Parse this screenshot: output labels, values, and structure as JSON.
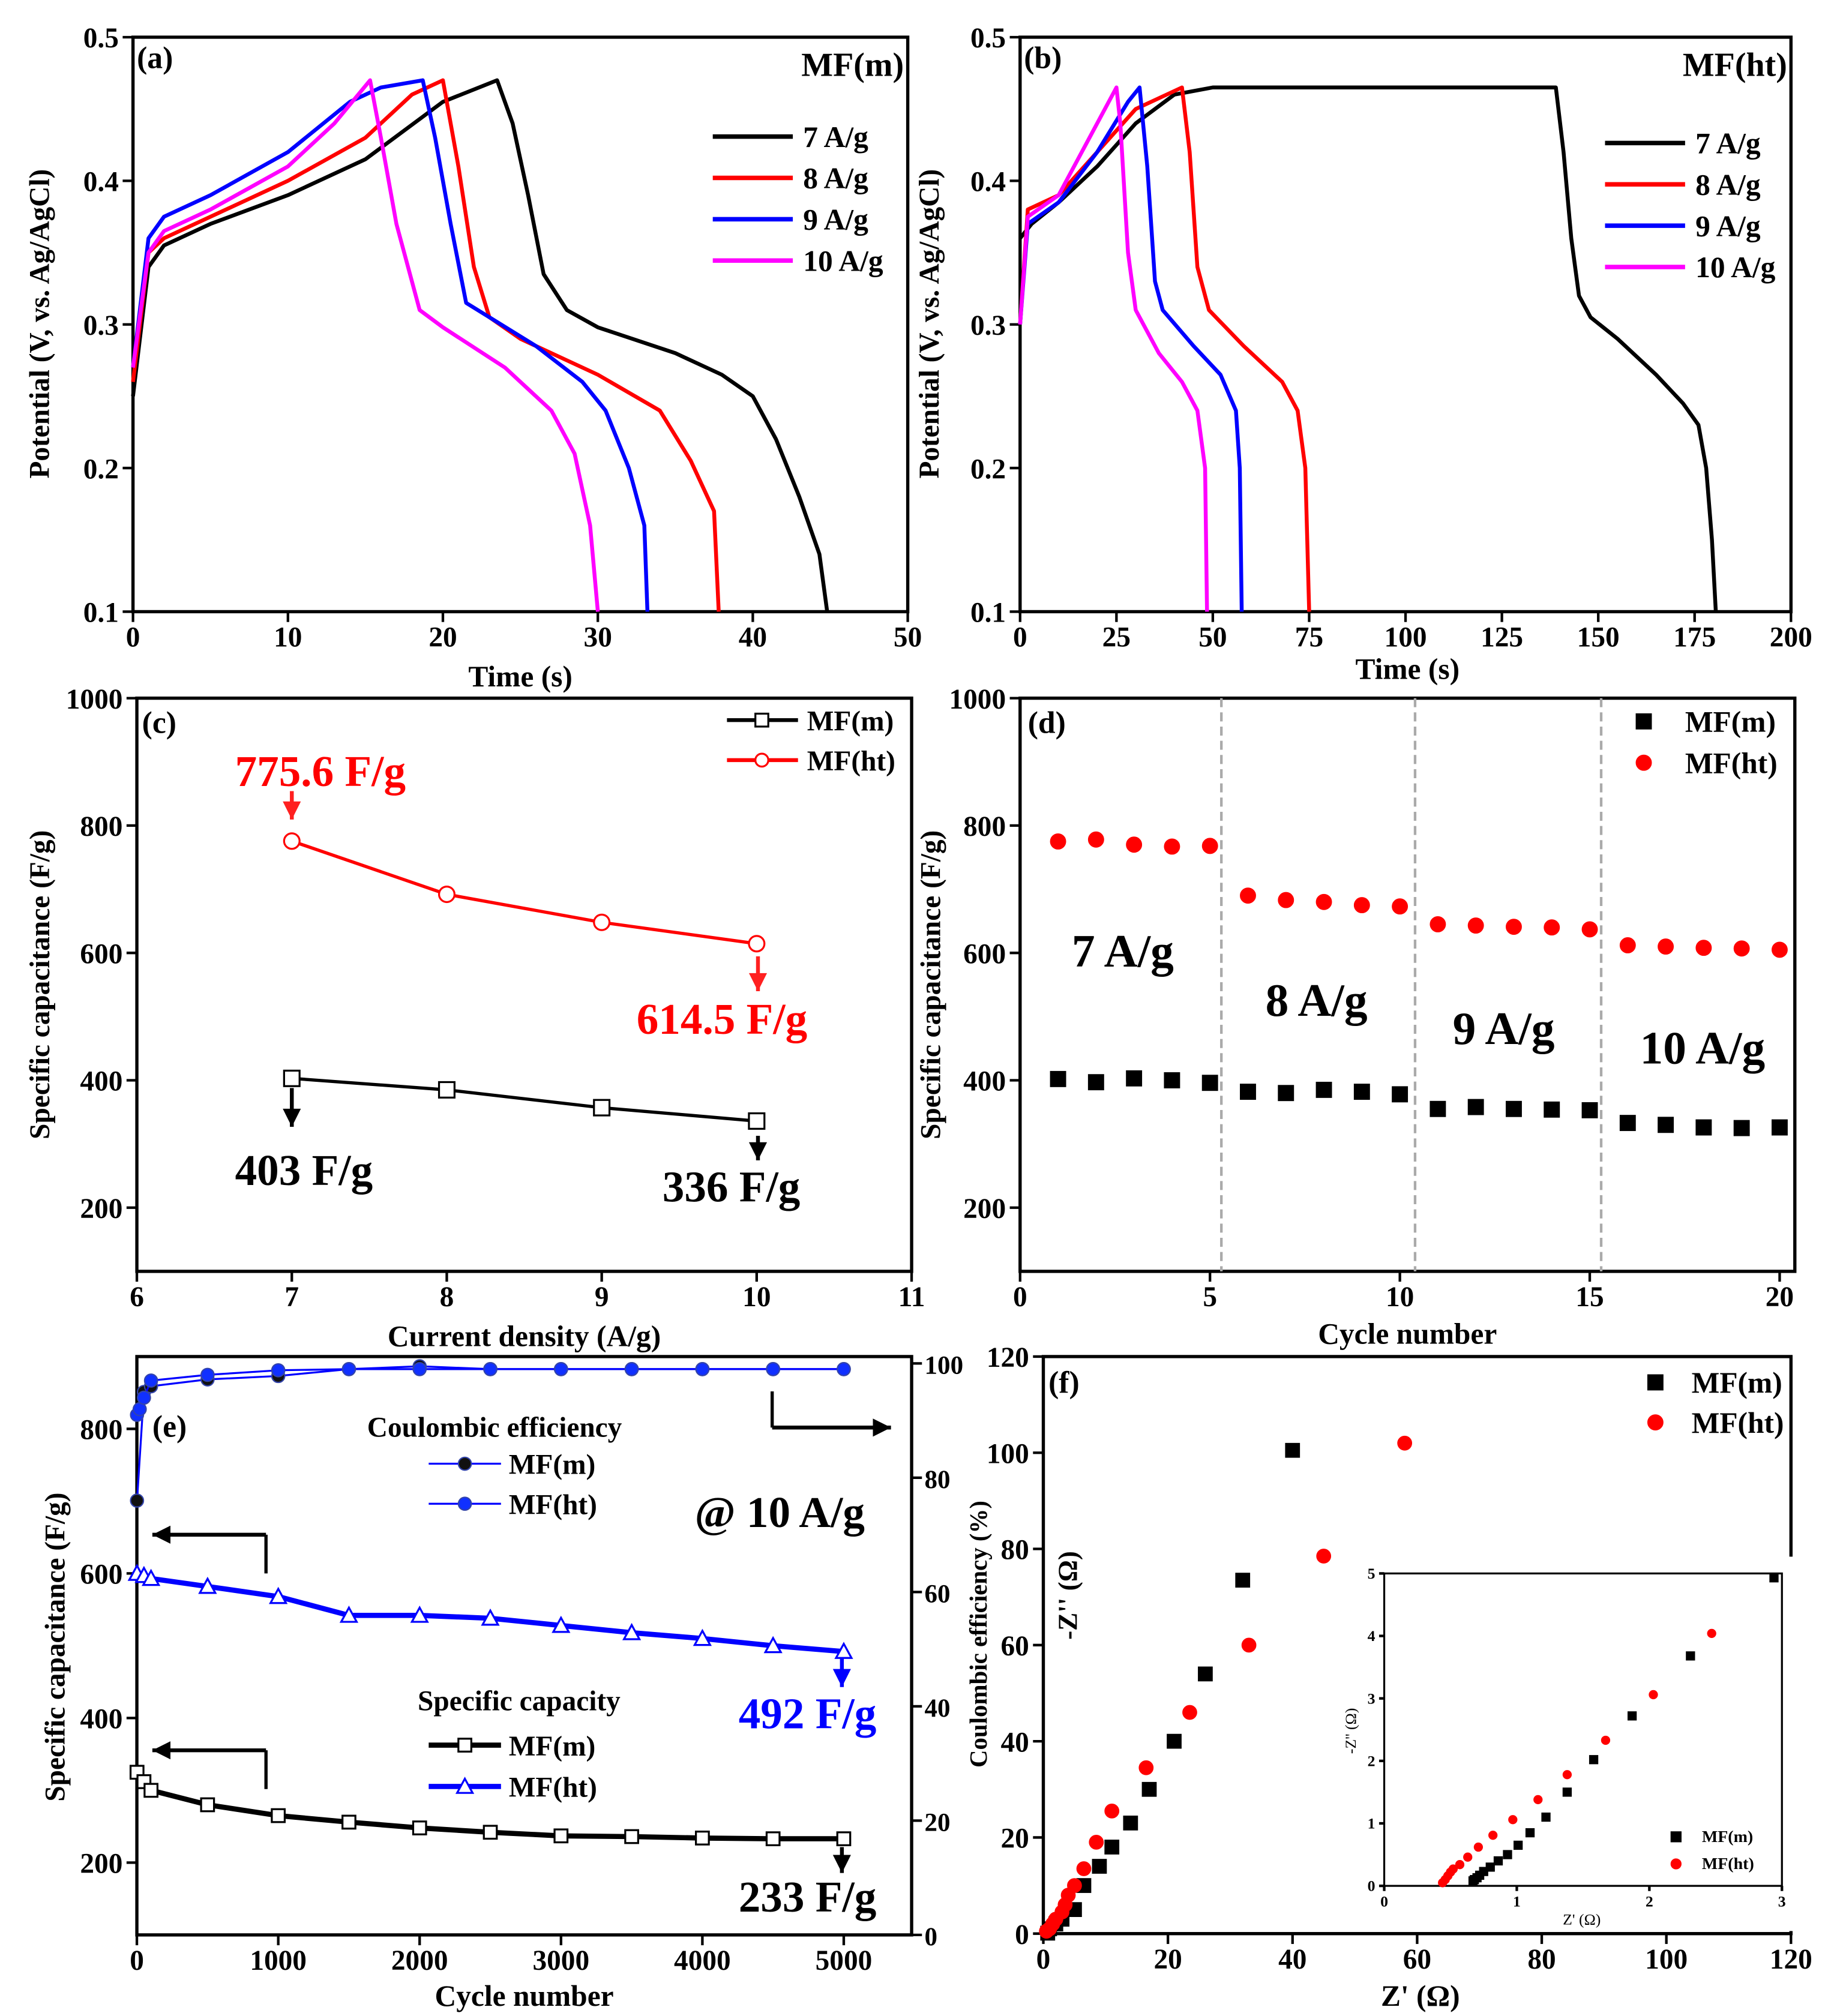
{
  "chart_data": [
    {
      "type": "line",
      "panel_label": "(a)",
      "sample_label": "MF(m)",
      "xlabel": "Time (s)",
      "ylabel": "Potential (V, vs. Ag/AgCl)",
      "xlim": [
        0,
        50
      ],
      "ylim": [
        0.1,
        0.5
      ],
      "xticks": [
        0,
        10,
        20,
        30,
        40,
        50
      ],
      "yticks": [
        0.1,
        0.2,
        0.3,
        0.4,
        0.5
      ],
      "legend_position": "top-right",
      "series": [
        {
          "name": "7 A/g",
          "color": "#000000",
          "x": [
            0,
            1,
            2,
            5,
            10,
            15,
            20,
            23.5,
            24.5,
            25.5,
            26.5,
            28,
            30,
            35,
            38,
            40,
            41.5,
            43,
            44.3,
            44.8
          ],
          "y": [
            0.25,
            0.34,
            0.355,
            0.37,
            0.39,
            0.415,
            0.455,
            0.47,
            0.44,
            0.39,
            0.335,
            0.31,
            0.298,
            0.28,
            0.265,
            0.25,
            0.22,
            0.18,
            0.14,
            0.1
          ]
        },
        {
          "name": "8 A/g",
          "color": "#ff0000",
          "x": [
            0,
            1,
            2,
            5,
            10,
            15,
            18,
            20,
            21,
            22,
            23,
            25,
            30,
            34,
            36,
            37.5,
            37.8
          ],
          "y": [
            0.26,
            0.35,
            0.36,
            0.375,
            0.4,
            0.43,
            0.46,
            0.47,
            0.41,
            0.34,
            0.305,
            0.29,
            0.265,
            0.24,
            0.205,
            0.17,
            0.1
          ]
        },
        {
          "name": "9 A/g",
          "color": "#0000ff",
          "x": [
            0,
            1,
            2,
            5,
            10,
            14,
            16,
            18.7,
            19.5,
            20.5,
            21.5,
            23,
            26,
            29,
            30.5,
            32,
            33,
            33.2
          ],
          "y": [
            0.27,
            0.36,
            0.375,
            0.39,
            0.42,
            0.455,
            0.465,
            0.47,
            0.43,
            0.37,
            0.315,
            0.305,
            0.285,
            0.26,
            0.24,
            0.2,
            0.16,
            0.1
          ]
        },
        {
          "name": "10 A/g",
          "color": "#ff00ff",
          "x": [
            0,
            1,
            2,
            5,
            10,
            13,
            15.3,
            16,
            17,
            18.5,
            20,
            24,
            27,
            28.5,
            29.5,
            30
          ],
          "y": [
            0.27,
            0.35,
            0.365,
            0.38,
            0.41,
            0.44,
            0.47,
            0.43,
            0.37,
            0.31,
            0.298,
            0.27,
            0.24,
            0.21,
            0.16,
            0.1
          ]
        }
      ]
    },
    {
      "type": "line",
      "panel_label": "(b)",
      "sample_label": "MF(ht)",
      "xlabel": "Time (s)",
      "ylabel": "Potential (V, vs. Ag/AgCl)",
      "xlim": [
        0,
        200
      ],
      "ylim": [
        0.1,
        0.5
      ],
      "xticks": [
        0,
        25,
        50,
        75,
        100,
        125,
        150,
        175,
        200
      ],
      "yticks": [
        0.1,
        0.2,
        0.3,
        0.4,
        0.5
      ],
      "legend_position": "top-right",
      "series": [
        {
          "name": "7 A/g",
          "color": "#000000",
          "x": [
            0,
            3,
            10,
            20,
            30,
            40,
            50,
            100,
            139,
            141,
            143,
            145,
            148,
            155,
            165,
            172,
            176,
            178,
            179.5,
            180.5
          ],
          "y": [
            0.36,
            0.37,
            0.385,
            0.41,
            0.44,
            0.46,
            0.465,
            0.465,
            0.465,
            0.42,
            0.36,
            0.32,
            0.305,
            0.29,
            0.265,
            0.245,
            0.23,
            0.2,
            0.15,
            0.1
          ]
        },
        {
          "name": "8 A/g",
          "color": "#ff0000",
          "x": [
            0,
            2,
            10,
            20,
            30,
            42,
            44,
            46,
            49,
            58,
            68,
            72,
            74,
            75
          ],
          "y": [
            0.3,
            0.38,
            0.39,
            0.42,
            0.45,
            0.465,
            0.42,
            0.34,
            0.31,
            0.285,
            0.26,
            0.24,
            0.2,
            0.1
          ]
        },
        {
          "name": "9 A/g",
          "color": "#0000ff",
          "x": [
            0,
            2,
            10,
            20,
            28,
            31,
            33,
            35,
            37,
            45,
            52,
            56,
            57,
            57.5
          ],
          "y": [
            0.3,
            0.37,
            0.385,
            0.42,
            0.455,
            0.465,
            0.41,
            0.33,
            0.31,
            0.285,
            0.265,
            0.24,
            0.2,
            0.1
          ]
        },
        {
          "name": "10 A/g",
          "color": "#ff00ff",
          "x": [
            0,
            2,
            10,
            18,
            25,
            26,
            28,
            30,
            36,
            42,
            46,
            48,
            48.5
          ],
          "y": [
            0.3,
            0.375,
            0.39,
            0.43,
            0.465,
            0.44,
            0.35,
            0.31,
            0.28,
            0.26,
            0.24,
            0.2,
            0.1
          ]
        }
      ]
    },
    {
      "type": "line",
      "panel_label": "(c)",
      "xlabel": "Current density (A/g)",
      "ylabel": "Specific capacitance (F/g)",
      "xlim": [
        6,
        11
      ],
      "ylim": [
        100,
        1000
      ],
      "xticks": [
        6,
        7,
        8,
        9,
        10,
        11
      ],
      "yticks": [
        200,
        400,
        600,
        800,
        1000
      ],
      "legend_position": "top-right",
      "series": [
        {
          "name": "MF(m)",
          "color": "#000000",
          "marker": "square-open",
          "x": [
            7,
            8,
            9,
            10
          ],
          "y": [
            403,
            385,
            357,
            336
          ]
        },
        {
          "name": "MF(ht)",
          "color": "#ff0000",
          "marker": "circle-open",
          "x": [
            7,
            8,
            9,
            10
          ],
          "y": [
            775.6,
            692,
            648,
            614.5
          ]
        }
      ],
      "annotations": {
        "ht_max": "775.6 F/g",
        "ht_min": "614.5 F/g",
        "m_max": "403 F/g",
        "m_min": "336 F/g"
      }
    },
    {
      "type": "scatter",
      "panel_label": "(d)",
      "xlabel": "Cycle number",
      "ylabel": "Specific capacitance (F/g)",
      "xlim": [
        0,
        20.4
      ],
      "ylim": [
        100,
        1000
      ],
      "xticks": [
        0,
        5,
        10,
        15,
        20
      ],
      "yticks": [
        200,
        400,
        600,
        800,
        1000
      ],
      "legend_position": "top-right",
      "region_dividers": [
        5.3,
        10.4,
        15.3
      ],
      "region_labels": [
        "7 A/g",
        "8 A/g",
        "9 A/g",
        "10 A/g"
      ],
      "series": [
        {
          "name": "MF(m)",
          "color": "#000000",
          "marker": "square",
          "x": [
            1,
            2,
            3,
            4,
            5,
            6,
            7,
            8,
            9,
            10,
            11,
            12,
            13,
            14,
            15,
            16,
            17,
            18,
            19,
            20
          ],
          "y": [
            402,
            397,
            403,
            400,
            396,
            382,
            380,
            385,
            382,
            378,
            355,
            358,
            355,
            354,
            353,
            333,
            330,
            326,
            325,
            326
          ]
        },
        {
          "name": "MF(ht)",
          "color": "#ff0000",
          "marker": "circle",
          "x": [
            1,
            2,
            3,
            4,
            5,
            6,
            7,
            8,
            9,
            10,
            11,
            12,
            13,
            14,
            15,
            16,
            17,
            18,
            19,
            20
          ],
          "y": [
            775,
            778,
            770,
            767,
            768,
            690,
            683,
            680,
            675,
            673,
            645,
            643,
            641,
            640,
            637,
            612,
            610,
            608,
            607,
            605
          ]
        }
      ]
    },
    {
      "type": "line",
      "panel_label": "(e)",
      "xlabel": "Cycle number",
      "ylabel": "Specific capacitance (F/g)",
      "y2label": "Coulombic efficiency (%)",
      "xlim": [
        0,
        5480
      ],
      "ylim": [
        100,
        900
      ],
      "y2lim": [
        0,
        101.2
      ],
      "xticks": [
        0,
        1000,
        2000,
        3000,
        4000,
        5000
      ],
      "yticks": [
        200,
        400,
        600,
        800
      ],
      "y2ticks": [
        0,
        20,
        40,
        60,
        80,
        100
      ],
      "condition": "@ 10 A/g",
      "ce_title": "Coulombic efficiency",
      "cap_title": "Specific capacity",
      "series": [
        {
          "name": "MF(m)",
          "group": "capacity",
          "axis": "left",
          "color": "#000000",
          "marker": "square-open",
          "x": [
            1,
            50,
            100,
            500,
            1000,
            1500,
            2000,
            2500,
            3000,
            3500,
            4000,
            4500,
            5000
          ],
          "y": [
            325,
            312,
            300,
            280,
            265,
            256,
            248,
            242,
            237,
            236,
            234,
            233,
            233
          ]
        },
        {
          "name": "MF(ht)",
          "group": "capacity",
          "axis": "left",
          "color": "#0000ff",
          "marker": "triangle-open",
          "x": [
            1,
            50,
            100,
            500,
            1000,
            1500,
            2000,
            2500,
            3000,
            3500,
            4000,
            4500,
            5000
          ],
          "y": [
            600,
            597,
            593,
            582,
            568,
            542,
            542,
            538,
            528,
            518,
            510,
            500,
            492
          ]
        },
        {
          "name": "MF(m)",
          "group": "ce",
          "axis": "right",
          "color": "#0000ff",
          "marker": "ball-black",
          "x": [
            1,
            50,
            100,
            500,
            1000,
            1500,
            2000,
            2500,
            3000,
            3500,
            4000,
            4500,
            5000
          ],
          "y": [
            76,
            95,
            96,
            97.2,
            97.8,
            99,
            99.5,
            99,
            99,
            99,
            99,
            99,
            99
          ]
        },
        {
          "name": "MF(ht)",
          "group": "ce",
          "axis": "right",
          "color": "#0000ff",
          "marker": "ball-blue",
          "x": [
            1,
            20,
            50,
            100,
            500,
            1000,
            1500,
            2000,
            2500,
            3000,
            3500,
            4000,
            4500,
            5000
          ],
          "y": [
            91,
            92,
            94,
            97,
            98,
            98.8,
            99,
            99,
            99,
            99,
            99,
            99,
            99,
            99
          ]
        }
      ],
      "annotations": {
        "ht_final": "492 F/g",
        "m_final": "233 F/g"
      }
    },
    {
      "type": "scatter",
      "panel_label": "(f)",
      "xlabel": "Z' (Ω)",
      "ylabel": "-Z'' (Ω)",
      "xlim": [
        0,
        120
      ],
      "ylim": [
        0,
        120
      ],
      "xticks": [
        0,
        20,
        40,
        60,
        80,
        100,
        120
      ],
      "yticks": [
        0,
        20,
        40,
        60,
        80,
        100,
        120
      ],
      "legend_position": "top-right",
      "series": [
        {
          "name": "MF(m)",
          "color": "#000000",
          "marker": "square",
          "x": [
            0.7,
            1,
            2,
            3,
            5,
            6.5,
            9,
            11,
            14,
            17,
            21,
            26,
            32,
            40
          ],
          "y": [
            0.1,
            1,
            2,
            3,
            5,
            10,
            14,
            18,
            23,
            30,
            40,
            54,
            73.5,
            100.5
          ]
        },
        {
          "name": "MF(ht)",
          "color": "#ff0000",
          "marker": "circle",
          "x": [
            0.5,
            1,
            1.5,
            2,
            3,
            3.5,
            4,
            5,
            6.5,
            8.5,
            11,
            16.5,
            23.5,
            33,
            45,
            58
          ],
          "y": [
            0.5,
            1,
            2,
            3,
            4.5,
            6,
            8,
            10,
            13.5,
            19,
            25.5,
            34.5,
            46,
            60,
            78.5,
            102
          ]
        }
      ]
    },
    {
      "type": "scatter",
      "panel_label": "",
      "xlabel": "Z' (Ω)",
      "ylabel": "-Z'' (Ω)",
      "xlim": [
        0,
        3
      ],
      "ylim": [
        0,
        5
      ],
      "xticks": [
        0,
        1,
        2,
        3
      ],
      "yticks": [
        0,
        1,
        2,
        3,
        4,
        5
      ],
      "legend_position": "bottom-right",
      "series": [
        {
          "name": "MF(m)",
          "color": "#000000",
          "marker": "square",
          "x": [
            0.67,
            0.68,
            0.7,
            0.72,
            0.75,
            0.8,
            0.86,
            0.93,
            1.01,
            1.1,
            1.22,
            1.38,
            1.58,
            1.87,
            2.31,
            2.94
          ],
          "y": [
            0.08,
            0.1,
            0.13,
            0.17,
            0.23,
            0.3,
            0.4,
            0.5,
            0.65,
            0.85,
            1.1,
            1.5,
            2.02,
            2.72,
            3.68,
            4.93
          ]
        },
        {
          "name": "MF(ht)",
          "color": "#ff0000",
          "marker": "circle",
          "x": [
            0.44,
            0.46,
            0.48,
            0.5,
            0.52,
            0.57,
            0.63,
            0.71,
            0.82,
            0.97,
            1.16,
            1.38,
            1.67,
            2.03,
            2.47
          ],
          "y": [
            0.05,
            0.1,
            0.16,
            0.22,
            0.27,
            0.34,
            0.46,
            0.62,
            0.81,
            1.06,
            1.38,
            1.78,
            2.33,
            3.06,
            4.04
          ]
        }
      ]
    }
  ]
}
